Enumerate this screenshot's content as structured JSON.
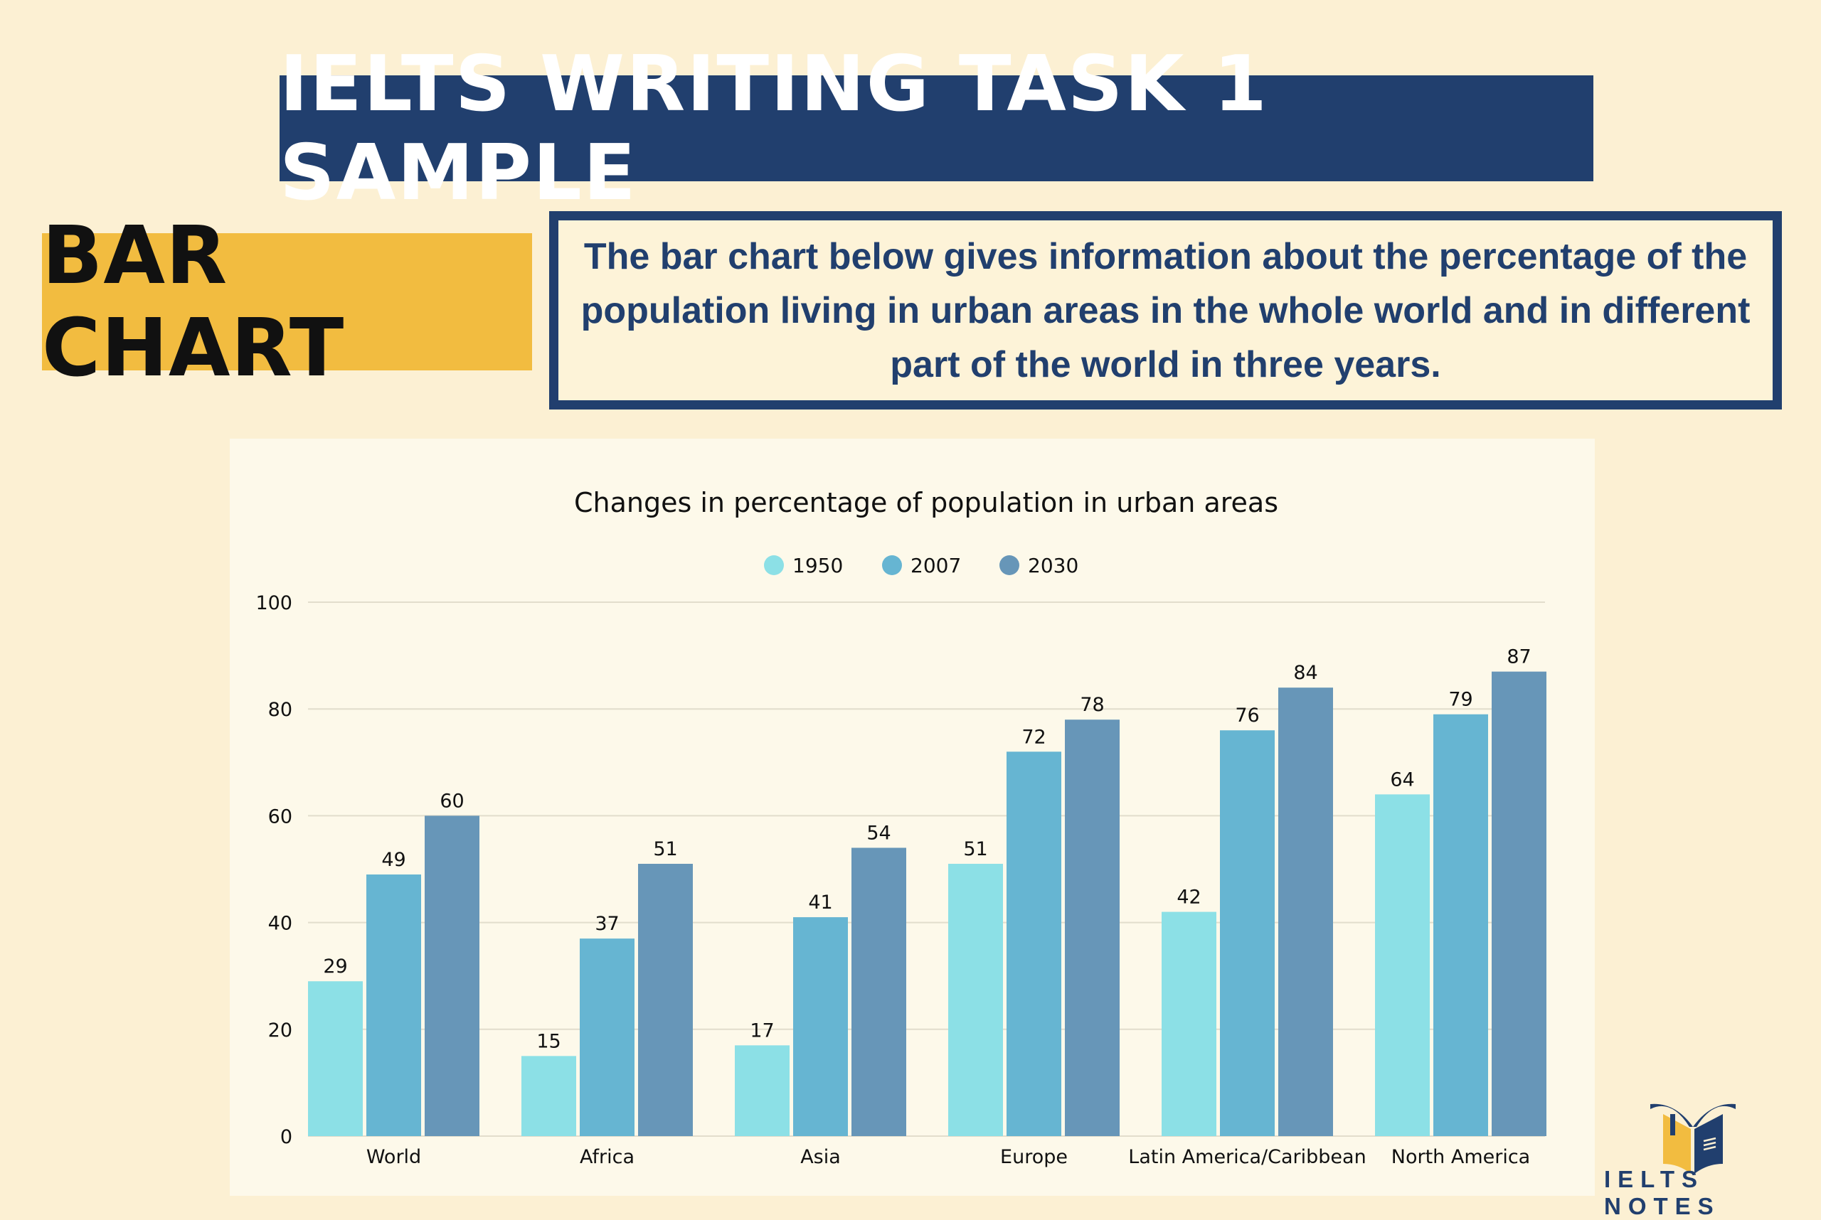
{
  "header": {
    "title": "IELTS WRITING TASK 1 SAMPLE",
    "chart_kind": "BAR CHART"
  },
  "prompt": "The bar chart below gives information about the percentage of the population living in urban areas in the whole world and in different part of the world in three years.",
  "logo": {
    "text": "IELTS NOTES",
    "icon": "open-book-icon"
  },
  "colors": {
    "navy": "#213f6e",
    "yellow": "#f2bc40",
    "s1950": "#8ce0e6",
    "s2007": "#66b5d2",
    "s2030": "#6796b8"
  },
  "chart_data": {
    "type": "bar",
    "title": "Changes in percentage of population in urban areas",
    "categories": [
      "World",
      "Africa",
      "Asia",
      "Europe",
      "Latin America/Caribbean",
      "North America"
    ],
    "series": [
      {
        "name": "1950",
        "color": "#8ce0e6",
        "values": [
          29,
          15,
          17,
          51,
          42,
          64
        ]
      },
      {
        "name": "2007",
        "color": "#66b5d2",
        "values": [
          49,
          37,
          41,
          72,
          76,
          79
        ]
      },
      {
        "name": "2030",
        "color": "#6796b8",
        "values": [
          60,
          51,
          54,
          78,
          84,
          87
        ]
      }
    ],
    "ylim": [
      0,
      100
    ],
    "yticks": [
      "0",
      "20",
      "40",
      "60",
      "80",
      "100"
    ],
    "grid": true,
    "legend": "top-center",
    "xlabel": "",
    "ylabel": ""
  }
}
